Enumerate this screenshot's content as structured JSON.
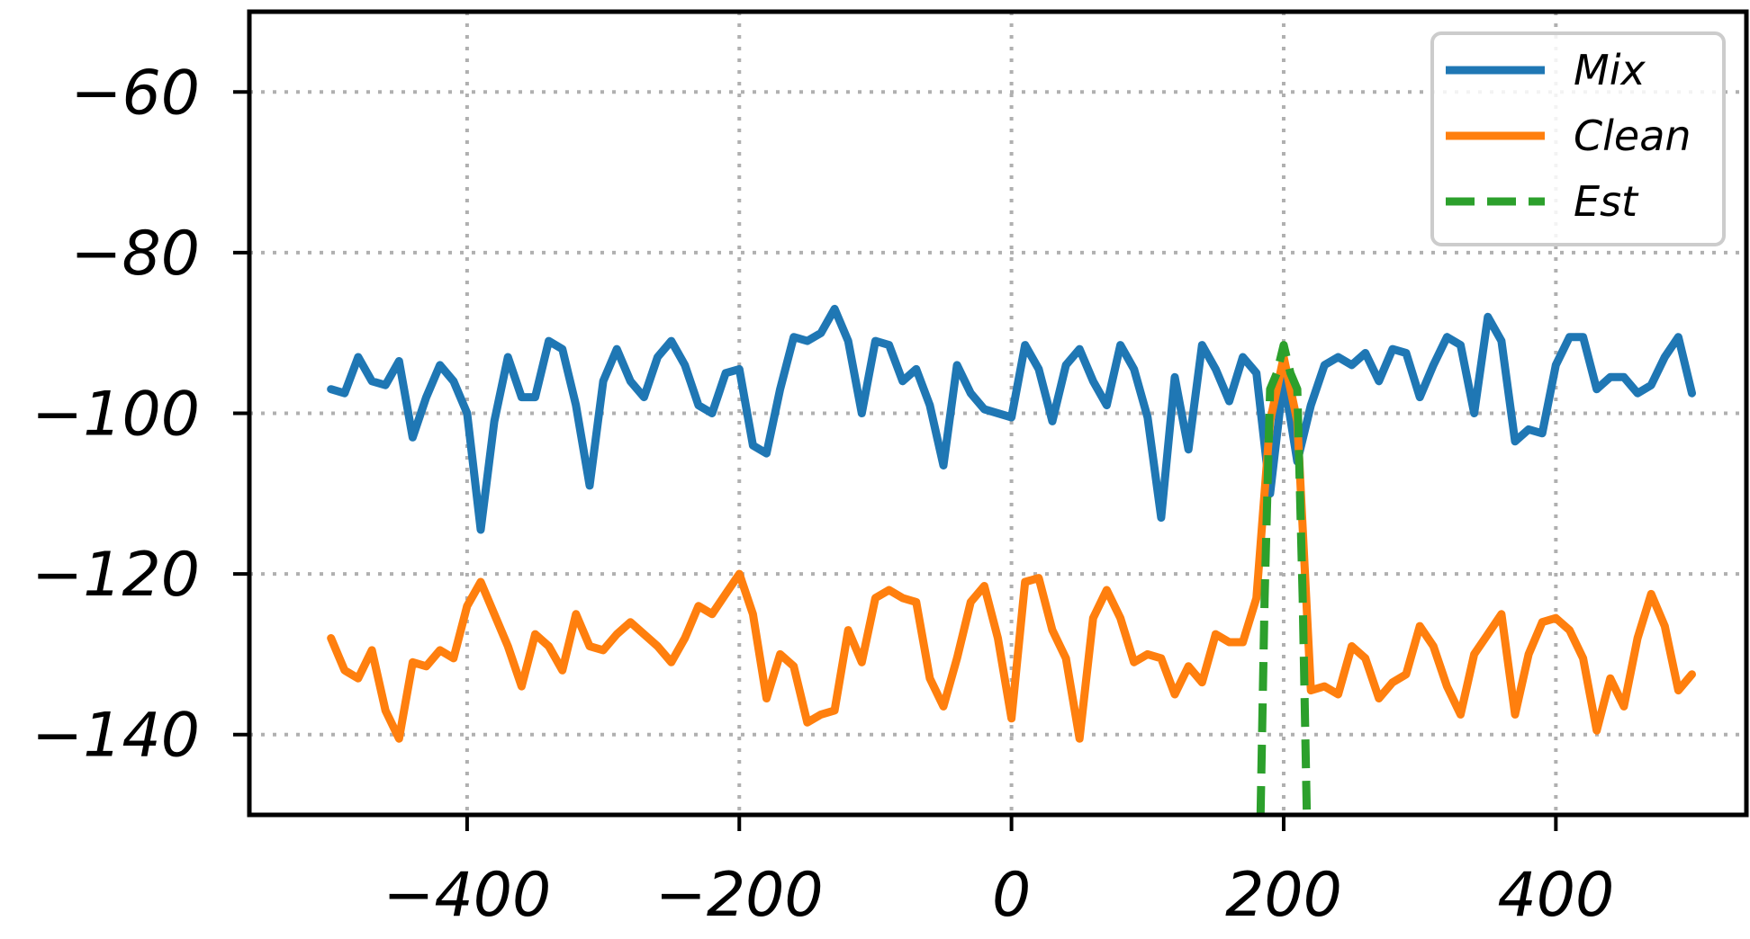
{
  "chart_data": {
    "type": "line",
    "title": "",
    "xlabel": "",
    "ylabel": "",
    "xlim": [
      -560,
      540
    ],
    "ylim": [
      -150,
      -50
    ],
    "xticks": [
      -400,
      -200,
      0,
      200,
      400
    ],
    "yticks": [
      -60,
      -80,
      -100,
      -120,
      -140
    ],
    "xtick_labels": [
      "−400",
      "−200",
      "0",
      "200",
      "400"
    ],
    "ytick_labels": [
      "−60",
      "−80",
      "−100",
      "−120",
      "−140"
    ],
    "grid": true,
    "legend": "top-right",
    "series": [
      {
        "name": "Mix",
        "color": "#1f77b4",
        "style": "solid",
        "x": [
          -500,
          -490,
          -480,
          -470,
          -460,
          -450,
          -440,
          -430,
          -420,
          -410,
          -400,
          -390,
          -380,
          -370,
          -360,
          -350,
          -340,
          -330,
          -320,
          -310,
          -300,
          -290,
          -280,
          -270,
          -260,
          -250,
          -240,
          -230,
          -220,
          -210,
          -200,
          -190,
          -180,
          -170,
          -160,
          -150,
          -140,
          -130,
          -120,
          -110,
          -100,
          -90,
          -80,
          -70,
          -60,
          -50,
          -40,
          -30,
          -20,
          -10,
          0,
          10,
          20,
          30,
          40,
          50,
          60,
          70,
          80,
          90,
          100,
          110,
          120,
          130,
          140,
          150,
          160,
          170,
          180,
          190,
          200,
          210,
          220,
          230,
          240,
          250,
          260,
          270,
          280,
          290,
          300,
          310,
          320,
          330,
          340,
          350,
          360,
          370,
          380,
          390,
          400,
          410,
          420,
          430,
          440,
          450,
          460,
          470,
          480,
          490,
          500
        ],
        "y": [
          -97,
          -97.5,
          -93,
          -96,
          -96.5,
          -93.5,
          -103,
          -98,
          -94,
          -96,
          -100,
          -114.5,
          -101,
          -93,
          -98,
          -98,
          -91,
          -92,
          -99,
          -109,
          -96,
          -92,
          -96,
          -98,
          -93,
          -91,
          -94,
          -99,
          -100,
          -95,
          -94.5,
          -104,
          -105,
          -97,
          -90.5,
          -91,
          -90,
          -87,
          -91,
          -100,
          -91,
          -91.5,
          -96,
          -94.5,
          -99,
          -106.5,
          -94,
          -97.5,
          -99.5,
          -100,
          -100.5,
          -91.5,
          -94.5,
          -101,
          -94,
          -92,
          -96,
          -99,
          -91.5,
          -94.5,
          -100.5,
          -113,
          -95.5,
          -104.5,
          -91.5,
          -94.5,
          -98.5,
          -93,
          -95,
          -110,
          -95.5,
          -106,
          -99,
          -94,
          -93,
          -94,
          -92.5,
          -96,
          -92,
          -92.5,
          -98,
          -94,
          -90.5,
          -91.5,
          -100,
          -88,
          -91,
          -103.5,
          -102,
          -102.5,
          -94,
          -90.5,
          -90.5,
          -97,
          -95.5,
          -95.5,
          -97.5,
          -96.5,
          -93,
          -90.5,
          -97.5
        ]
      },
      {
        "name": "Clean",
        "color": "#ff7f0e",
        "style": "solid",
        "x": [
          -500,
          -490,
          -480,
          -470,
          -460,
          -450,
          -440,
          -430,
          -420,
          -410,
          -400,
          -390,
          -380,
          -370,
          -360,
          -350,
          -340,
          -330,
          -320,
          -310,
          -300,
          -290,
          -280,
          -270,
          -260,
          -250,
          -240,
          -230,
          -220,
          -210,
          -200,
          -190,
          -180,
          -170,
          -160,
          -150,
          -140,
          -130,
          -120,
          -110,
          -100,
          -90,
          -80,
          -70,
          -60,
          -50,
          -40,
          -30,
          -20,
          -10,
          0,
          10,
          20,
          30,
          40,
          50,
          60,
          70,
          80,
          90,
          100,
          110,
          120,
          130,
          140,
          150,
          160,
          170,
          180,
          190,
          200,
          210,
          220,
          230,
          240,
          250,
          260,
          270,
          280,
          290,
          300,
          310,
          320,
          330,
          340,
          350,
          360,
          370,
          380,
          390,
          400,
          410,
          420,
          430,
          440,
          450,
          460,
          470,
          480,
          490,
          500
        ],
        "y": [
          -128,
          -132,
          -133,
          -129.5,
          -137,
          -140.5,
          -131,
          -131.5,
          -129.5,
          -130.5,
          -124,
          -121,
          -125,
          -129,
          -134,
          -127.5,
          -129,
          -132,
          -125,
          -129,
          -129.5,
          -127.5,
          -126,
          -127.5,
          -129,
          -131,
          -128,
          -124,
          -125,
          -122.5,
          -120,
          -125,
          -135.5,
          -130,
          -131.5,
          -138.5,
          -137.5,
          -137,
          -127,
          -131,
          -123,
          -122,
          -123,
          -123.5,
          -133,
          -136.5,
          -130.5,
          -123.5,
          -121.5,
          -128,
          -138,
          -121,
          -120.5,
          -127,
          -130.5,
          -140.5,
          -125.5,
          -122,
          -125.5,
          -131,
          -130,
          -130.5,
          -135,
          -131.5,
          -133.5,
          -127.5,
          -128.5,
          -128.5,
          -123,
          -101,
          -93,
          -101,
          -134.5,
          -134,
          -135,
          -129,
          -130.5,
          -135.5,
          -133.5,
          -132.5,
          -126.5,
          -129,
          -134,
          -137.5,
          -130,
          -127.5,
          -125,
          -137.5,
          -130,
          -126,
          -125.5,
          -127,
          -130.5,
          -139.5,
          -133,
          -136.5,
          -128,
          -122.5,
          -126.5,
          -134.5,
          -132.5
        ]
      },
      {
        "name": "Est",
        "color": "#2ca02c",
        "style": "dashed",
        "x": [
          183,
          186,
          190,
          195,
          200,
          205,
          210,
          214,
          217
        ],
        "y": [
          -150,
          -123,
          -97,
          -95,
          -91.5,
          -95,
          -97,
          -123,
          -150
        ]
      }
    ]
  }
}
